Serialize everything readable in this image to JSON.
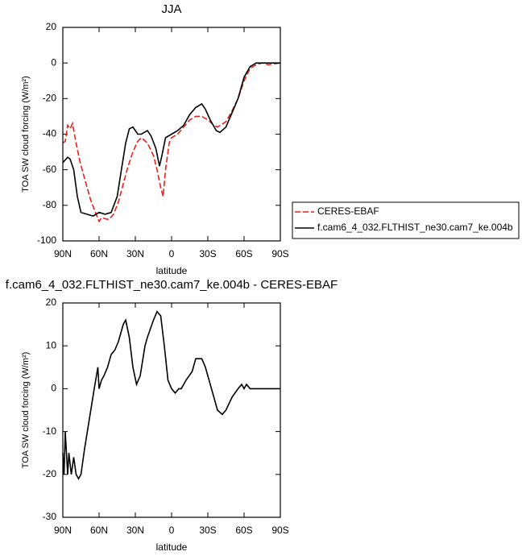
{
  "chart_data": [
    {
      "type": "line",
      "title": "JJA",
      "x_label": "latitude",
      "y_label": "TOA SW cloud forcing (W/m²)",
      "xlim": [
        90,
        -90
      ],
      "ylim": [
        -100,
        20
      ],
      "xticks": [
        {
          "value": 90,
          "label": "90N"
        },
        {
          "value": 60,
          "label": "60N"
        },
        {
          "value": 30,
          "label": "30N"
        },
        0,
        {
          "value": -30,
          "label": "30S"
        },
        {
          "value": -60,
          "label": "60S"
        },
        {
          "value": -90,
          "label": "90S"
        }
      ],
      "yticks": [
        -100,
        -80,
        -60,
        -40,
        -20,
        0,
        20
      ],
      "series": [
        {
          "name": "CERES-EBAF",
          "color": "#e8211c",
          "dash": true,
          "x": [
            90,
            88,
            86,
            84,
            82,
            79,
            76,
            72,
            67,
            63,
            60,
            58,
            52,
            48,
            44,
            40,
            36,
            32,
            28,
            25,
            20,
            15,
            12,
            9,
            7,
            5,
            2,
            0,
            -5,
            -10,
            -15,
            -20,
            -25,
            -30,
            -35,
            -38,
            -45,
            -50,
            -55,
            -60,
            -65,
            -70,
            -75,
            -80,
            -90
          ],
          "values": [
            -45,
            -44,
            -35,
            -37,
            -34,
            -45,
            -55,
            -65,
            -77,
            -84,
            -89,
            -87,
            -88,
            -85,
            -78,
            -68,
            -58,
            -50,
            -44,
            -42,
            -45,
            -52,
            -60,
            -70,
            -75,
            -60,
            -45,
            -42,
            -40,
            -36,
            -32,
            -30,
            -30,
            -32,
            -35,
            -36,
            -33,
            -27,
            -20,
            -10,
            -3,
            -1,
            0,
            -1,
            0
          ]
        },
        {
          "name": "f.cam6_4_032.FLTHIST_ne30.cam7_ke.004b",
          "color": "#000000",
          "dash": false,
          "x": [
            90,
            86,
            84,
            81,
            78,
            75,
            70,
            65,
            60,
            55,
            50,
            45,
            42,
            38,
            35,
            32,
            28,
            25,
            20,
            17,
            13,
            10,
            8,
            5,
            0,
            -5,
            -10,
            -15,
            -20,
            -25,
            -28,
            -32,
            -37,
            -40,
            -45,
            -50,
            -55,
            -60,
            -65,
            -70,
            -75,
            -80,
            -90
          ],
          "values": [
            -56,
            -53,
            -54,
            -60,
            -75,
            -84,
            -85,
            -86,
            -84,
            -85,
            -84,
            -75,
            -62,
            -45,
            -37,
            -36,
            -40,
            -40,
            -38,
            -41,
            -48,
            -58,
            -52,
            -42,
            -40,
            -38,
            -35,
            -29,
            -25,
            -23,
            -26,
            -32,
            -38,
            -39,
            -36,
            -28,
            -20,
            -8,
            -2,
            0,
            0,
            0,
            0
          ]
        }
      ]
    },
    {
      "type": "line",
      "title": "f.cam6_4_032.FLTHIST_ne30.cam7_ke.004b - CERES-EBAF",
      "x_label": "latitude",
      "y_label": "TOA SW cloud forcing (W/m²)",
      "xlim": [
        90,
        -90
      ],
      "ylim": [
        -30,
        20
      ],
      "xticks": [
        {
          "value": 90,
          "label": "90N"
        },
        {
          "value": 60,
          "label": "60N"
        },
        {
          "value": 30,
          "label": "30N"
        },
        0,
        {
          "value": -30,
          "label": "30S"
        },
        {
          "value": -60,
          "label": "60S"
        },
        {
          "value": -90,
          "label": "90S"
        }
      ],
      "yticks": [
        -30,
        -20,
        -10,
        0,
        10,
        20
      ],
      "color": "#000000",
      "x": [
        90,
        89,
        88,
        86,
        85,
        83,
        81,
        79,
        77,
        75,
        72,
        68,
        64,
        61,
        60,
        58,
        56,
        53,
        50,
        47,
        44,
        40,
        38,
        35,
        32,
        29,
        26,
        22,
        20,
        15,
        12,
        9,
        6,
        3,
        0,
        -3,
        -6,
        -8,
        -12,
        -17,
        -20,
        -25,
        -28,
        -33,
        -38,
        -42,
        -45,
        -50,
        -55,
        -58,
        -60,
        -62,
        -65,
        -70,
        -80,
        -90
      ],
      "values": [
        -15,
        -20,
        -10,
        -20,
        -15,
        -20,
        -16,
        -20,
        -21,
        -20,
        -14,
        -7,
        0,
        5,
        0,
        2,
        3,
        5,
        8,
        9,
        11,
        15,
        16,
        12,
        5,
        1,
        3,
        10,
        12,
        16,
        18,
        17,
        10,
        2,
        0,
        -1,
        0,
        0,
        2,
        4,
        7,
        7,
        5,
        0,
        -5,
        -6,
        -5,
        -2,
        0,
        1,
        0,
        1,
        0,
        0,
        0,
        0
      ]
    }
  ]
}
